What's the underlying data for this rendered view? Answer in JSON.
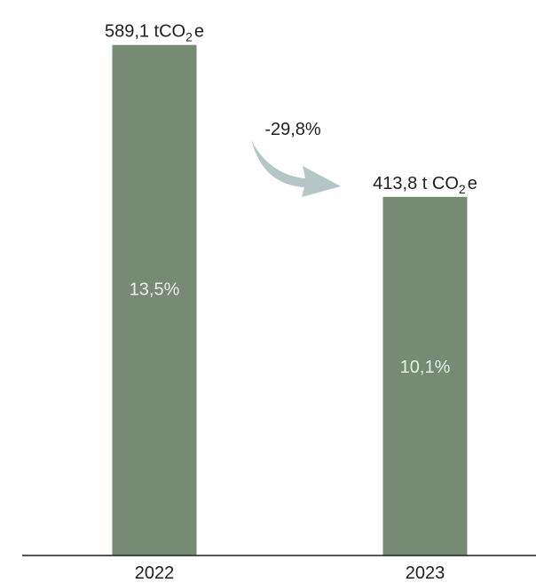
{
  "chart_data": {
    "type": "bar",
    "categories": [
      "2022",
      "2023"
    ],
    "values": [
      589.1,
      413.8
    ],
    "value_labels": [
      {
        "main": "589,1 tCO",
        "sub": "2",
        "suffix": "e"
      },
      {
        "main": "413,8 t CO",
        "sub": "2",
        "suffix": "e"
      }
    ],
    "inner_labels": [
      "13,5%",
      "10,1%"
    ],
    "change_label": "-29,8%",
    "title": "",
    "xlabel": "",
    "ylabel": "",
    "ylim": [
      0,
      600
    ],
    "grid": false,
    "colors": {
      "bar": "#768a74",
      "arrow": "#b5c6c6",
      "axis": "#1f1f1f",
      "inner_text": "#e9efe9"
    }
  }
}
